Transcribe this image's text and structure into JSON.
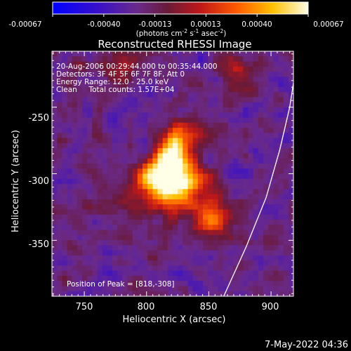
{
  "colorbar": {
    "ticks": [
      "-0.00067",
      "-0.00040",
      "-0.00013",
      "0.00013",
      "0.00040",
      "0.00067"
    ],
    "units_main": "(photons cm",
    "units_sup1": "-2",
    "units_mid1": " s",
    "units_sup2": "-1",
    "units_mid2": " asec",
    "units_sup3": "-2",
    "units_end": ")"
  },
  "chart_data": {
    "type": "heatmap",
    "title": "Reconstructed RHESSI Image",
    "xlabel": "Heliocentric X (arcsec)",
    "ylabel": "Heliocentric Y (arcsec)",
    "xlim": [
      724,
      918
    ],
    "ylim": [
      -392,
      -208
    ],
    "x_ticks": [
      750,
      800,
      850,
      900
    ],
    "y_ticks": [
      -250,
      -300,
      -350
    ],
    "x_tick_labels": [
      "750",
      "800",
      "850",
      "900"
    ],
    "y_tick_labels": [
      "-250",
      "-300",
      "-350"
    ],
    "color_range": [
      -0.00067,
      0.00067
    ],
    "peak_position": [
      818,
      -308
    ],
    "limb_curve": [
      [
        862,
        -392
      ],
      [
        880,
        -355
      ],
      [
        896,
        -318
      ],
      [
        907,
        -282
      ],
      [
        915,
        -250
      ],
      [
        918,
        -232
      ]
    ],
    "annotations": [
      "20-Aug-2006 00:29:44.000 to 00:35:44.000",
      "Detectors: 3F 4F 5F 6F 7F 8F, Att 0",
      "Energy Range: 12.0 - 25.0 keV",
      "Clean     Total counts: 1.57E+04"
    ],
    "peak_label": "Position of Peak = [818,-308]",
    "timestamp": "7-May-2022 04:36"
  }
}
